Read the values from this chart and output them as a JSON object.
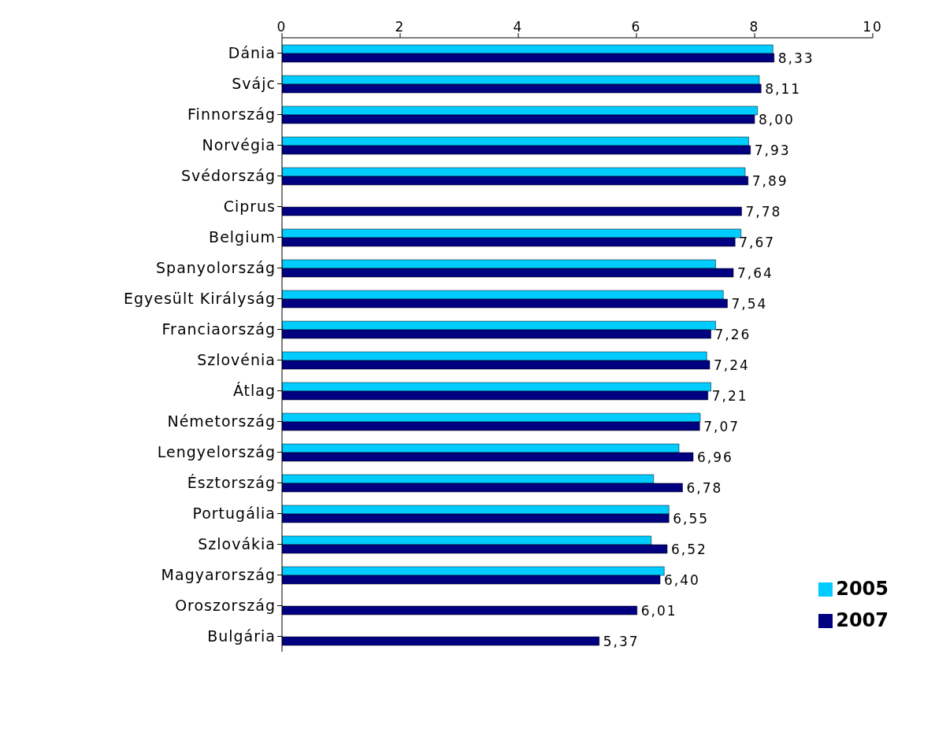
{
  "chart_data": {
    "type": "bar",
    "orientation": "horizontal",
    "categories": [
      "Dánia",
      "Svájc",
      "Finnország",
      "Norvégia",
      "Svédország",
      "Ciprus",
      "Belgium",
      "Spanyolország",
      "Egyesült Királyság",
      "Franciaország",
      "Szlovénia",
      "Átlag",
      "Németország",
      "Lengyelország",
      "Észtország",
      "Portugália",
      "Szlovákia",
      "Magyarország",
      "Oroszország",
      "Bulgária"
    ],
    "series": [
      {
        "name": "2005",
        "color": "#00ccff",
        "values": [
          8.31,
          8.08,
          8.05,
          7.9,
          7.84,
          null,
          7.77,
          7.34,
          7.47,
          7.34,
          7.19,
          7.26,
          7.08,
          6.72,
          6.29,
          6.55,
          6.25,
          6.47,
          null,
          null
        ]
      },
      {
        "name": "2007",
        "color": "#000080",
        "values": [
          8.33,
          8.11,
          8.0,
          7.93,
          7.89,
          7.78,
          7.67,
          7.64,
          7.54,
          7.26,
          7.24,
          7.21,
          7.07,
          6.96,
          6.78,
          6.55,
          6.52,
          6.4,
          6.01,
          5.37
        ],
        "value_labels": [
          "8,33",
          "8,11",
          "8,00",
          "7,93",
          "7,89",
          "7,78",
          "7,67",
          "7,64",
          "7,54",
          "7,26",
          "7,24",
          "7,21",
          "7,07",
          "6,96",
          "6,78",
          "6,55",
          "6,52",
          "6,40",
          "6,01",
          "5,37"
        ]
      }
    ],
    "xlim": [
      0,
      10
    ],
    "xticks": [
      0,
      2,
      4,
      6,
      8,
      10
    ],
    "legend": "bottom right"
  }
}
